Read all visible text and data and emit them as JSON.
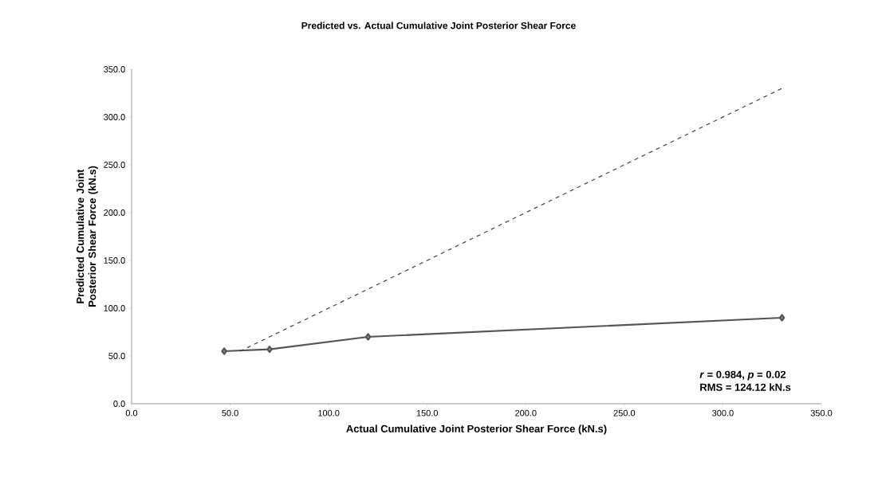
{
  "chart_data": {
    "type": "line",
    "title": "Predicted vs. Actual Cumulative Joint Posterior Shear Force",
    "xlabel": "Actual Cumulative Joint Posterior Shear Force (kN.s)",
    "ylabel": "Predicted Cumulative Joint Posterior Shear Force (kN.s)",
    "xlim": [
      0,
      350
    ],
    "ylim": [
      0,
      350
    ],
    "xticks": [
      {
        "value": 0,
        "label": "0.0"
      },
      {
        "value": 50,
        "label": "50.0"
      },
      {
        "value": 100,
        "label": "100.0"
      },
      {
        "value": 150,
        "label": "150.0"
      },
      {
        "value": 200,
        "label": "200.0"
      },
      {
        "value": 250,
        "label": "250.0"
      },
      {
        "value": 300,
        "label": "300.0"
      },
      {
        "value": 350,
        "label": "350.0"
      }
    ],
    "yticks": [
      {
        "value": 0,
        "label": "0.0"
      },
      {
        "value": 50,
        "label": "50.0"
      },
      {
        "value": 100,
        "label": "100.0"
      },
      {
        "value": 150,
        "label": "150.0"
      },
      {
        "value": 200,
        "label": "200.0"
      },
      {
        "value": 250,
        "label": "250.0"
      },
      {
        "value": 300,
        "label": "300.0"
      },
      {
        "value": 350,
        "label": "350.0"
      }
    ],
    "series": [
      {
        "x": [
          47,
          70,
          120,
          330
        ],
        "values": [
          55,
          57,
          70,
          90
        ],
        "color": "#555555",
        "marker": "diamond",
        "line_style": "solid"
      },
      {
        "x": [
          55,
          330
        ],
        "values": [
          55,
          330
        ],
        "color": "#444444",
        "marker": "none",
        "line_style": "dashed"
      }
    ],
    "annotations": [
      "*r* = 0.984, *p* = 0.02",
      "RMS = 124.12 kN.s"
    ],
    "grid": false,
    "legend": false
  }
}
